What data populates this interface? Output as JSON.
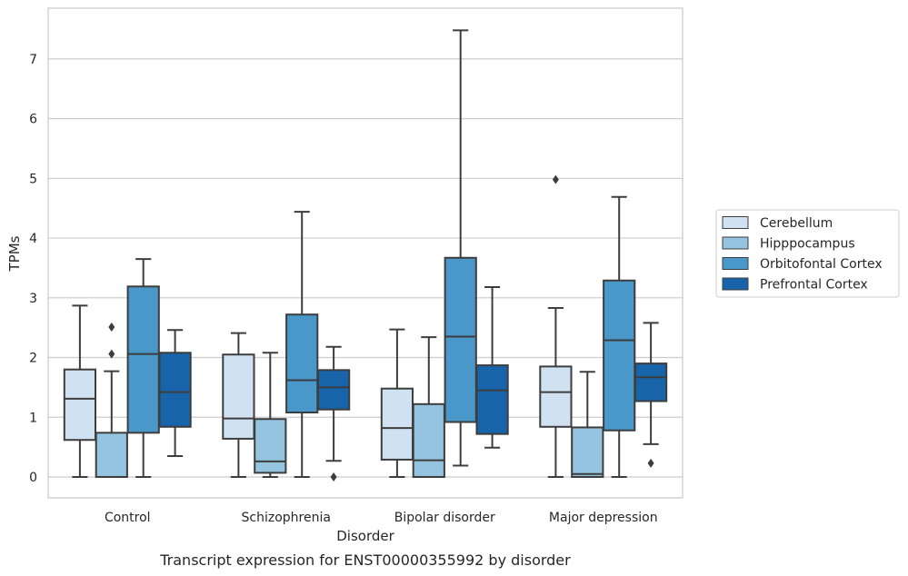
{
  "caption": "Transcript expression for ENST00000355992 by disorder",
  "chart_data": {
    "type": "box",
    "categories": [
      "Control",
      "Schizophrenia",
      "Bipolar disorder",
      "Major depression"
    ],
    "xlabel": "Disorder",
    "ylabel": "TPMs",
    "ylim": [
      -0.35,
      7.85
    ],
    "yticks": [
      0,
      1,
      2,
      3,
      4,
      5,
      6,
      7
    ],
    "grid": "horizontal",
    "legend_position": "right",
    "series": [
      {
        "name": "Cerebellum",
        "color": "#d0e1f2",
        "boxes": [
          {
            "whislo": 0.0,
            "q1": 0.62,
            "med": 1.31,
            "q3": 1.8,
            "whishi": 2.87,
            "fliers": []
          },
          {
            "whislo": 0.0,
            "q1": 0.64,
            "med": 0.98,
            "q3": 2.05,
            "whishi": 2.41,
            "fliers": []
          },
          {
            "whislo": 0.0,
            "q1": 0.29,
            "med": 0.82,
            "q3": 1.48,
            "whishi": 2.47,
            "fliers": []
          },
          {
            "whislo": 0.0,
            "q1": 0.84,
            "med": 1.42,
            "q3": 1.85,
            "whishi": 2.83,
            "fliers": [
              4.98
            ]
          }
        ]
      },
      {
        "name": "Hipppocampus",
        "color": "#94c4df",
        "boxes": [
          {
            "whislo": 0.0,
            "q1": 0.0,
            "med": 0.0,
            "q3": 0.74,
            "whishi": 1.77,
            "fliers": [
              2.06,
              2.51
            ]
          },
          {
            "whislo": 0.0,
            "q1": 0.07,
            "med": 0.26,
            "q3": 0.97,
            "whishi": 2.08,
            "fliers": []
          },
          {
            "whislo": 0.0,
            "q1": 0.0,
            "med": 0.28,
            "q3": 1.22,
            "whishi": 2.34,
            "fliers": []
          },
          {
            "whislo": 0.0,
            "q1": 0.0,
            "med": 0.05,
            "q3": 0.83,
            "whishi": 1.76,
            "fliers": []
          }
        ]
      },
      {
        "name": "Orbitofontal Cortex",
        "color": "#4a98c9",
        "boxes": [
          {
            "whislo": 0.0,
            "q1": 0.74,
            "med": 2.06,
            "q3": 3.19,
            "whishi": 3.65,
            "fliers": []
          },
          {
            "whislo": 0.0,
            "q1": 1.08,
            "med": 1.62,
            "q3": 2.72,
            "whishi": 4.44,
            "fliers": []
          },
          {
            "whislo": 0.19,
            "q1": 0.92,
            "med": 2.35,
            "q3": 3.67,
            "whishi": 7.48,
            "fliers": []
          },
          {
            "whislo": 0.0,
            "q1": 0.78,
            "med": 2.29,
            "q3": 3.29,
            "whishi": 4.69,
            "fliers": []
          }
        ]
      },
      {
        "name": "Prefrontal Cortex",
        "color": "#1764ab",
        "boxes": [
          {
            "whislo": 0.35,
            "q1": 0.84,
            "med": 1.42,
            "q3": 2.08,
            "whishi": 2.46,
            "fliers": []
          },
          {
            "whislo": 0.27,
            "q1": 1.13,
            "med": 1.5,
            "q3": 1.79,
            "whishi": 2.18,
            "fliers": [
              0.0
            ]
          },
          {
            "whislo": 0.49,
            "q1": 0.72,
            "med": 1.45,
            "q3": 1.87,
            "whishi": 3.18,
            "fliers": []
          },
          {
            "whislo": 0.55,
            "q1": 1.27,
            "med": 1.67,
            "q3": 1.9,
            "whishi": 2.58,
            "fliers": [
              0.23
            ]
          }
        ]
      }
    ]
  }
}
